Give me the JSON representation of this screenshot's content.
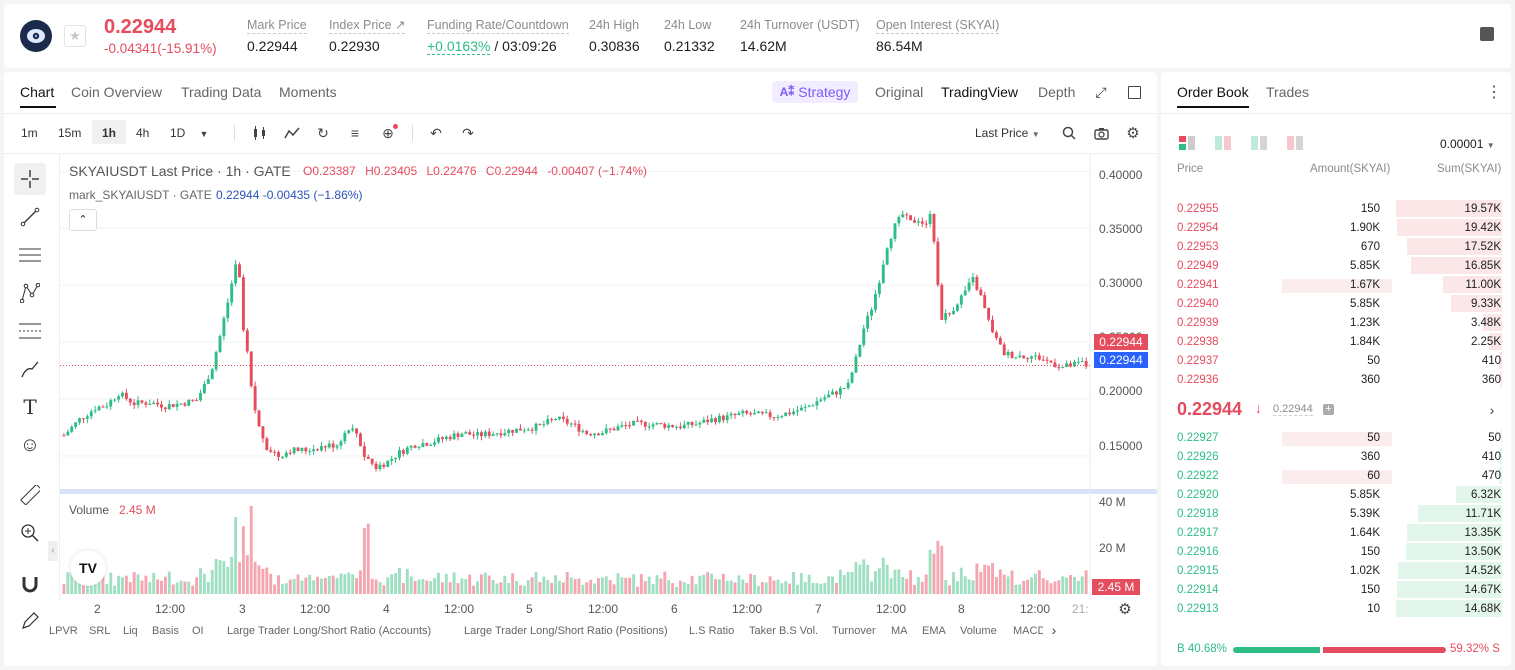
{
  "header": {
    "price": "0.22944",
    "change": "-0.04341(-15.91%)",
    "stats": [
      {
        "label": "Mark Price",
        "value": "0.22944"
      },
      {
        "label": "Index Price ↗",
        "value": "0.22930"
      },
      {
        "label": "Funding Rate/Countdown",
        "value_green": "+0.0163%",
        "value_rest": " / 03:09:26"
      },
      {
        "label": "24h High",
        "value": "0.30836"
      },
      {
        "label": "24h Low",
        "value": "0.21332"
      },
      {
        "label": "24h Turnover (USDT)",
        "value": "14.62M"
      },
      {
        "label": "Open Interest (SKYAI)",
        "value": "86.54M"
      }
    ]
  },
  "chart_tabs": [
    "Chart",
    "Coin Overview",
    "Trading Data",
    "Moments"
  ],
  "view_tabs": {
    "strategy": "Strategy",
    "original": "Original",
    "tradingview": "TradingView",
    "depth": "Depth"
  },
  "toolbar": {
    "intervals": [
      "1m",
      "15m",
      "1h",
      "4h",
      "1D"
    ],
    "price_type": "Last Price"
  },
  "legend": {
    "title": "SKYAIUSDT Last Price · 1h · GATE",
    "o_label": "O",
    "o": "0.23387",
    "h_label": "H",
    "h": "0.23405",
    "l_label": "L",
    "l": "0.22476",
    "c_label": "C",
    "c": "0.22944",
    "chg": "-0.00407 (−1.74%)",
    "mark_title": "mark_SKYAIUSDT · GATE",
    "mark_val": "0.22944 -0.00435 (−1.86%)",
    "volume_label": "Volume",
    "volume_val": "2.45 M"
  },
  "price_tags": {
    "last": "0.22944",
    "mark": "0.22944",
    "volume": "2.45 M"
  },
  "chart_data": {
    "type": "candlestick",
    "title": "SKYAIUSDT Last Price · 1h · GATE",
    "ylim": [
      0.12,
      0.41
    ],
    "y_ticks": [
      "0.40000",
      "0.35000",
      "0.30000",
      "0.25000",
      "0.20000",
      "0.15000"
    ],
    "volume_ticks": [
      "40 M",
      "20 M"
    ],
    "x_ticks": [
      "2",
      "12:00",
      "3",
      "12:00",
      "4",
      "12:00",
      "5",
      "12:00",
      "6",
      "12:00",
      "7",
      "12:00",
      "8",
      "12:00",
      "21:"
    ],
    "close_path": [
      [
        0,
        0.168
      ],
      [
        4,
        0.182
      ],
      [
        8,
        0.192
      ],
      [
        11,
        0.195
      ],
      [
        14,
        0.205
      ],
      [
        18,
        0.196
      ],
      [
        22,
        0.197
      ],
      [
        26,
        0.194
      ],
      [
        30,
        0.196
      ],
      [
        34,
        0.199
      ],
      [
        36,
        0.212
      ],
      [
        38,
        0.228
      ],
      [
        40,
        0.255
      ],
      [
        42,
        0.285
      ],
      [
        44,
        0.318
      ],
      [
        45,
        0.305
      ],
      [
        46,
        0.26
      ],
      [
        47,
        0.24
      ],
      [
        48,
        0.21
      ],
      [
        49,
        0.19
      ],
      [
        50,
        0.175
      ],
      [
        52,
        0.158
      ],
      [
        55,
        0.15
      ],
      [
        58,
        0.155
      ],
      [
        62,
        0.155
      ],
      [
        66,
        0.158
      ],
      [
        70,
        0.16
      ],
      [
        73,
        0.175
      ],
      [
        75,
        0.17
      ],
      [
        77,
        0.15
      ],
      [
        80,
        0.14
      ],
      [
        83,
        0.145
      ],
      [
        86,
        0.153
      ],
      [
        90,
        0.16
      ],
      [
        94,
        0.162
      ],
      [
        98,
        0.166
      ],
      [
        102,
        0.17
      ],
      [
        106,
        0.168
      ],
      [
        110,
        0.17
      ],
      [
        114,
        0.172
      ],
      [
        118,
        0.174
      ],
      [
        122,
        0.176
      ],
      [
        126,
        0.183
      ],
      [
        130,
        0.178
      ],
      [
        134,
        0.17
      ],
      [
        138,
        0.171
      ],
      [
        142,
        0.175
      ],
      [
        146,
        0.178
      ],
      [
        150,
        0.178
      ],
      [
        154,
        0.177
      ],
      [
        158,
        0.176
      ],
      [
        162,
        0.178
      ],
      [
        166,
        0.182
      ],
      [
        170,
        0.184
      ],
      [
        174,
        0.187
      ],
      [
        178,
        0.186
      ],
      [
        182,
        0.185
      ],
      [
        186,
        0.188
      ],
      [
        190,
        0.192
      ],
      [
        194,
        0.2
      ],
      [
        198,
        0.206
      ],
      [
        201,
        0.212
      ],
      [
        203,
        0.235
      ],
      [
        205,
        0.262
      ],
      [
        207,
        0.28
      ],
      [
        209,
        0.305
      ],
      [
        211,
        0.335
      ],
      [
        213,
        0.352
      ],
      [
        215,
        0.362
      ],
      [
        217,
        0.355
      ],
      [
        219,
        0.358
      ],
      [
        221,
        0.352
      ],
      [
        222,
        0.365
      ],
      [
        223,
        0.34
      ],
      [
        224,
        0.3
      ],
      [
        225,
        0.272
      ],
      [
        227,
        0.275
      ],
      [
        229,
        0.285
      ],
      [
        231,
        0.295
      ],
      [
        233,
        0.305
      ],
      [
        235,
        0.29
      ],
      [
        237,
        0.268
      ],
      [
        239,
        0.252
      ],
      [
        241,
        0.24
      ],
      [
        244,
        0.238
      ],
      [
        247,
        0.238
      ],
      [
        250,
        0.236
      ],
      [
        253,
        0.232
      ],
      [
        256,
        0.228
      ],
      [
        259,
        0.23
      ],
      [
        261,
        0.232
      ],
      [
        262,
        0.229
      ]
    ],
    "volume_spikes": [
      [
        44,
        35
      ],
      [
        48,
        40
      ],
      [
        77,
        30
      ],
      [
        78,
        32
      ],
      [
        222,
        20
      ]
    ]
  },
  "bottom_indicators": [
    "LPVR",
    "SRL",
    "Liq",
    "Basis",
    "OI",
    "Large Trader Long/Short Ratio (Accounts)",
    "Large Trader Long/Short Ratio (Positions)",
    "L.S Ratio",
    "Taker B.S Vol.",
    "Turnover",
    "MA",
    "EMA",
    "Volume",
    "MACD"
  ],
  "order_book": {
    "tabs": [
      "Order Book",
      "Trades"
    ],
    "precision": "0.00001",
    "headers": [
      "Price",
      "Amount(SKYAI)",
      "Sum(SKYAI)"
    ],
    "asks": [
      {
        "p": "0.22955",
        "a": "150",
        "s": "19.57K",
        "af": 0,
        "sf": 1.0
      },
      {
        "p": "0.22954",
        "a": "1.90K",
        "s": "19.42K",
        "af": 0,
        "sf": 0.99
      },
      {
        "p": "0.22953",
        "a": "670",
        "s": "17.52K",
        "af": 0,
        "sf": 0.9
      },
      {
        "p": "0.22949",
        "a": "5.85K",
        "s": "16.85K",
        "af": 0,
        "sf": 0.86
      },
      {
        "p": "0.22941",
        "a": "1.67K",
        "s": "11.00K",
        "af": 1.0,
        "sf": 0.56
      },
      {
        "p": "0.22940",
        "a": "5.85K",
        "s": "9.33K",
        "af": 0,
        "sf": 0.48
      },
      {
        "p": "0.22939",
        "a": "1.23K",
        "s": "3.48K",
        "af": 0,
        "sf": 0.18
      },
      {
        "p": "0.22938",
        "a": "1.84K",
        "s": "2.25K",
        "af": 0,
        "sf": 0.12
      },
      {
        "p": "0.22937",
        "a": "50",
        "s": "410",
        "af": 0,
        "sf": 0.03
      },
      {
        "p": "0.22936",
        "a": "360",
        "s": "360",
        "af": 0,
        "sf": 0.02
      }
    ],
    "mid": {
      "price": "0.22944",
      "mark": "0.22944"
    },
    "bids": [
      {
        "p": "0.22927",
        "a": "50",
        "s": "50",
        "af": 1.0,
        "sf": 0.01
      },
      {
        "p": "0.22926",
        "a": "360",
        "s": "410",
        "af": 0,
        "sf": 0.02
      },
      {
        "p": "0.22922",
        "a": "60",
        "s": "470",
        "af": 1.0,
        "sf": 0.03
      },
      {
        "p": "0.22920",
        "a": "5.85K",
        "s": "6.32K",
        "af": 0,
        "sf": 0.43
      },
      {
        "p": "0.22918",
        "a": "5.39K",
        "s": "11.71K",
        "af": 0,
        "sf": 0.79
      },
      {
        "p": "0.22917",
        "a": "1.64K",
        "s": "13.35K",
        "af": 0,
        "sf": 0.9
      },
      {
        "p": "0.22916",
        "a": "150",
        "s": "13.50K",
        "af": 0,
        "sf": 0.91
      },
      {
        "p": "0.22915",
        "a": "1.02K",
        "s": "14.52K",
        "af": 0,
        "sf": 0.98
      },
      {
        "p": "0.22914",
        "a": "150",
        "s": "14.67K",
        "af": 0,
        "sf": 0.99
      },
      {
        "p": "0.22913",
        "a": "10",
        "s": "14.68K",
        "af": 0,
        "sf": 1.0
      }
    ],
    "ratio": {
      "buy_label": "B",
      "buy": "40.68%",
      "sell": "59.32%",
      "sell_label": "S",
      "buy_frac": 0.4068
    }
  },
  "colors": {
    "up": "#2ebd85",
    "down": "#e54c5e",
    "accent": "#7b5cf5"
  }
}
